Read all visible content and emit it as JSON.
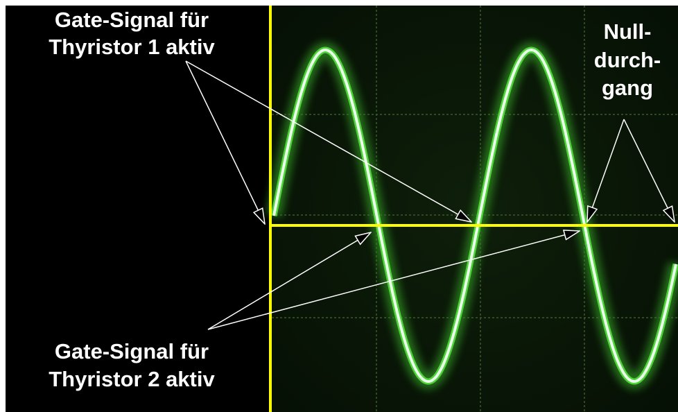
{
  "labels": {
    "thyristor_1": [
      "Gate-Signal für",
      "Thyristor 1 aktiv"
    ],
    "zero_crossing": [
      "Null-",
      "durch-",
      "gang"
    ],
    "thyristor_2": [
      "Gate-Signal für",
      "Thyristor 2 aktiv"
    ]
  }
}
